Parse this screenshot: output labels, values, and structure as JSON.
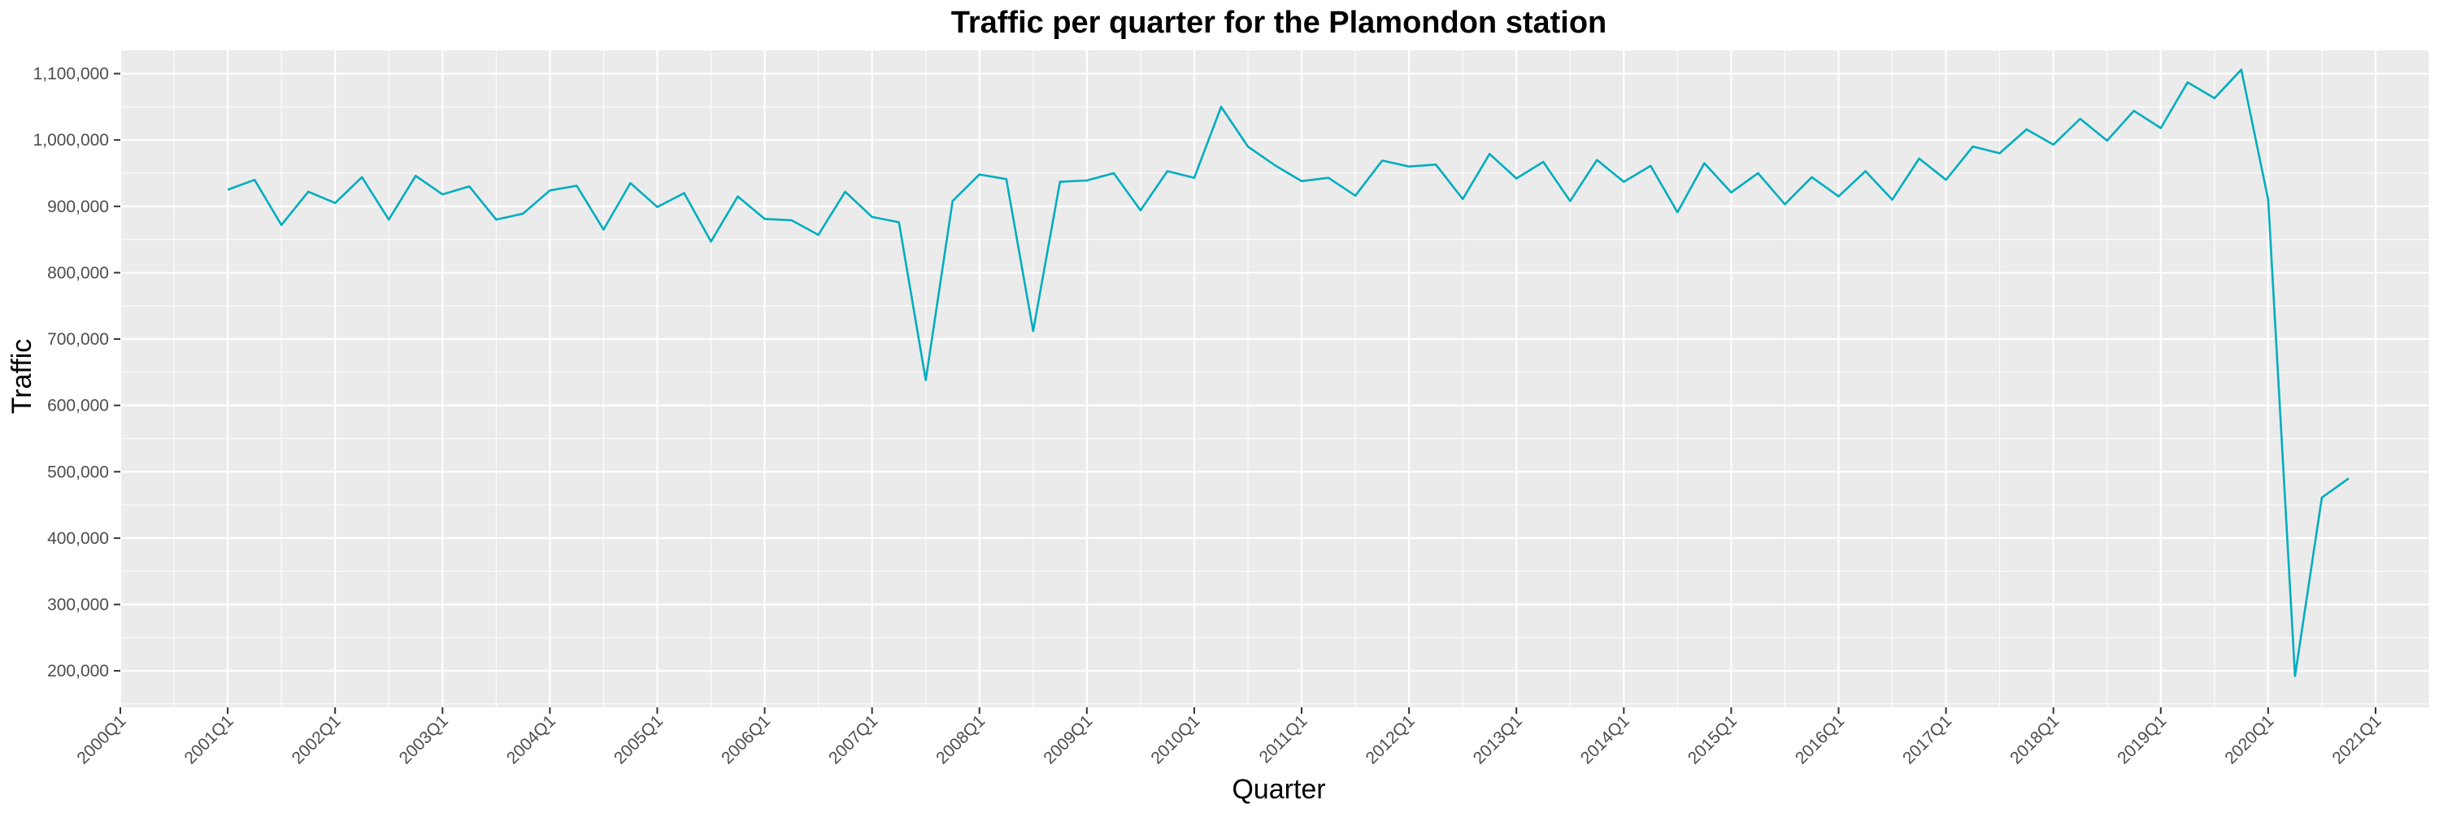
{
  "chart_data": {
    "type": "line",
    "title": "Traffic per quarter for the Plamondon station",
    "xlabel": "Quarter",
    "ylabel": "Traffic",
    "x_ticks": [
      "2000Q1",
      "2001Q1",
      "2002Q1",
      "2003Q1",
      "2004Q1",
      "2005Q1",
      "2006Q1",
      "2007Q1",
      "2008Q1",
      "2009Q1",
      "2010Q1",
      "2011Q1",
      "2012Q1",
      "2013Q1",
      "2014Q1",
      "2015Q1",
      "2016Q1",
      "2017Q1",
      "2018Q1",
      "2019Q1",
      "2020Q1",
      "2021Q1"
    ],
    "y_ticks": [
      "200,000",
      "300,000",
      "400,000",
      "500,000",
      "600,000",
      "700,000",
      "800,000",
      "900,000",
      "1,000,000",
      "1,100,000"
    ],
    "xlim": [
      "2000Q1",
      "2021Q3"
    ],
    "ylim": [
      145000,
      1135000
    ],
    "grid": true,
    "colors": {
      "line": "#00adbf",
      "panel": "#ebebeb",
      "grid": "#ffffff"
    },
    "x": [
      "2001Q1",
      "2001Q2",
      "2001Q3",
      "2001Q4",
      "2002Q1",
      "2002Q2",
      "2002Q3",
      "2002Q4",
      "2003Q1",
      "2003Q2",
      "2003Q3",
      "2003Q4",
      "2004Q1",
      "2004Q2",
      "2004Q3",
      "2004Q4",
      "2005Q1",
      "2005Q2",
      "2005Q3",
      "2005Q4",
      "2006Q1",
      "2006Q2",
      "2006Q3",
      "2006Q4",
      "2007Q1",
      "2007Q2",
      "2007Q3",
      "2007Q4",
      "2008Q1",
      "2008Q2",
      "2008Q3",
      "2008Q4",
      "2009Q1",
      "2009Q2",
      "2009Q3",
      "2009Q4",
      "2010Q1",
      "2010Q2",
      "2010Q3",
      "2010Q4",
      "2011Q1",
      "2011Q2",
      "2011Q3",
      "2011Q4",
      "2012Q1",
      "2012Q2",
      "2012Q3",
      "2012Q4",
      "2013Q1",
      "2013Q2",
      "2013Q3",
      "2013Q4",
      "2014Q1",
      "2014Q2",
      "2014Q3",
      "2014Q4",
      "2015Q1",
      "2015Q2",
      "2015Q3",
      "2015Q4",
      "2016Q1",
      "2016Q2",
      "2016Q3",
      "2016Q4",
      "2017Q1",
      "2017Q2",
      "2017Q3",
      "2017Q4",
      "2018Q1",
      "2018Q2",
      "2018Q3",
      "2018Q4",
      "2019Q1",
      "2019Q2",
      "2019Q3",
      "2019Q4",
      "2020Q1",
      "2020Q2",
      "2020Q3",
      "2020Q4"
    ],
    "values": [
      925000,
      940000,
      872000,
      922000,
      905000,
      944000,
      880000,
      946000,
      918000,
      930000,
      880000,
      889000,
      924000,
      931000,
      865000,
      935000,
      899000,
      920000,
      847000,
      915000,
      881000,
      879000,
      857000,
      922000,
      884000,
      876000,
      638000,
      908000,
      948000,
      941000,
      712000,
      937000,
      939000,
      950000,
      894000,
      953000,
      943000,
      1050000,
      990000,
      962000,
      938000,
      943000,
      916000,
      969000,
      960000,
      963000,
      911000,
      979000,
      942000,
      967000,
      908000,
      970000,
      937000,
      961000,
      891000,
      965000,
      921000,
      950000,
      903000,
      944000,
      915000,
      953000,
      910000,
      972000,
      940000,
      990000,
      980000,
      1016000,
      993000,
      1032000,
      999000,
      1044000,
      1018000,
      1087000,
      1063000,
      1106000,
      910000,
      192000,
      461000,
      490000
    ]
  }
}
